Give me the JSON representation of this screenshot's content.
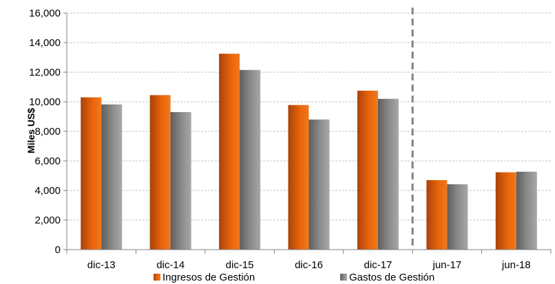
{
  "chart_data": {
    "type": "bar",
    "categories": [
      "dic-13",
      "dic-14",
      "dic-15",
      "dic-16",
      "dic-17",
      "jun-17",
      "jun-18"
    ],
    "series": [
      {
        "name": "Ingresos de Gestión",
        "values": [
          10300,
          10450,
          13250,
          9780,
          10750,
          4700,
          5230
        ]
      },
      {
        "name": "Gastos de Gestión",
        "values": [
          9820,
          9300,
          12150,
          8800,
          10200,
          4420,
          5270
        ]
      }
    ],
    "ylabel": "Miles US$",
    "xlabel": "",
    "ylim": [
      0,
      16000
    ],
    "yticks": [
      "0",
      "2,000",
      "4,000",
      "6,000",
      "8,000",
      "10,000",
      "12,000",
      "14,000",
      "16,000"
    ],
    "grid": true,
    "legend": "bottom",
    "divider_after_category": "dic-17",
    "colors": {
      "ingresos": "#e8630a",
      "gastos": "#8c8c8c",
      "grid": "#bfbfbf",
      "divider": "#808080"
    }
  }
}
